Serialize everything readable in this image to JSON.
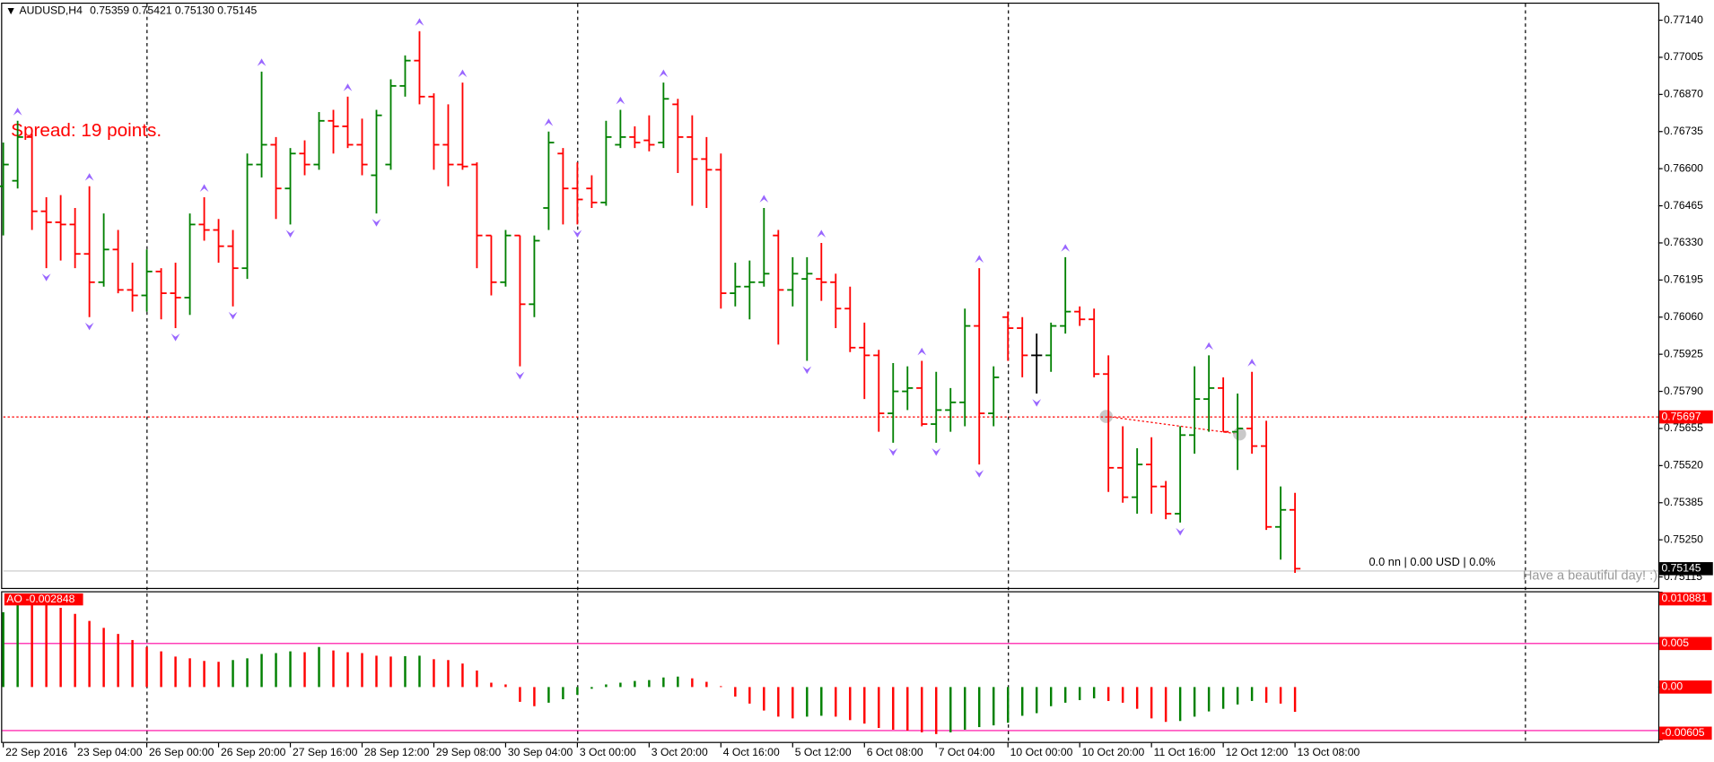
{
  "chart_data": {
    "type": "ohlc",
    "header": {
      "symbol": "AUDUSD,H4",
      "values": [
        "0.75359",
        "0.75421",
        "0.75130",
        "0.75145"
      ]
    },
    "spread_text": "Spread: 19 points.",
    "account_text": "0.0 nn | 0.00 USD | 0.0%",
    "greeting": "Have a beautiful day! :)",
    "categories": [
      "22 Sep 2016",
      null,
      null,
      null,
      null,
      "23 Sep 04:00",
      null,
      null,
      null,
      null,
      "26 Sep 00:00",
      null,
      null,
      null,
      null,
      "26 Sep 20:00",
      null,
      null,
      null,
      null,
      "27 Sep 16:00",
      null,
      null,
      null,
      null,
      "28 Sep 12:00",
      null,
      null,
      null,
      null,
      "29 Sep 08:00",
      null,
      null,
      null,
      null,
      "30 Sep 04:00",
      null,
      null,
      null,
      null,
      "3 Oct 00:00",
      null,
      null,
      null,
      null,
      "3 Oct 20:00",
      null,
      null,
      null,
      null,
      "4 Oct 16:00",
      null,
      null,
      null,
      null,
      "5 Oct 12:00",
      null,
      null,
      null,
      null,
      "6 Oct 08:00",
      null,
      null,
      null,
      null,
      "7 Oct 04:00",
      null,
      null,
      null,
      null,
      "10 Oct 00:00",
      null,
      null,
      null,
      null,
      "10 Oct 20:00",
      null,
      null,
      null,
      null,
      "11 Oct 16:00",
      null,
      null,
      null,
      null,
      "12 Oct 12:00",
      null,
      null,
      null,
      null,
      "13 Oct 08:00"
    ],
    "open": [
      0.76536,
      0.76556,
      0.76715,
      0.76445,
      0.76405,
      0.76397,
      0.7629,
      0.76187,
      0.76306,
      0.76159,
      0.76139,
      0.76226,
      0.76147,
      0.76131,
      0.76397,
      0.76377,
      0.76318,
      0.76238,
      0.76615,
      0.76687,
      0.76528,
      0.76655,
      0.76615,
      0.76774,
      0.76754,
      0.76687,
      0.76576,
      0.76615,
      0.76901,
      0.76993,
      0.76862,
      0.76687,
      0.76615,
      0.76615,
      0.76357,
      0.76187,
      0.76357,
      0.76107,
      0.76457,
      0.76655,
      0.76528,
      0.76528,
      0.76477,
      0.76687,
      0.76715,
      0.76703,
      0.76695,
      0.76834,
      0.76715,
      0.76635,
      0.76596,
      0.76147,
      0.76171,
      0.76187,
      0.76357,
      0.76159,
      0.76199,
      0.76199,
      0.76187,
      0.76091,
      0.75949,
      0.75921,
      0.7571,
      0.7579,
      0.75802,
      0.75671,
      0.75722,
      0.7575,
      0.76028,
      0.7571,
      0.7606,
      0.7602,
      0.75921,
      0.75921,
      0.76028,
      0.7608,
      0.76052,
      0.75853,
      0.75512,
      0.75405,
      0.75524,
      0.75444,
      0.75345,
      0.75631,
      0.75762,
      0.75802,
      0.75643,
      0.75655,
      0.75591,
      0.75297,
      0.75359
    ],
    "high": [
      0.76695,
      0.76774,
      0.76727,
      0.76496,
      0.76504,
      0.76457,
      0.76536,
      0.76437,
      0.76377,
      0.76258,
      0.76306,
      0.76238,
      0.76258,
      0.76437,
      0.76496,
      0.76417,
      0.76377,
      0.76655,
      0.76953,
      0.76715,
      0.76675,
      0.76703,
      0.76806,
      0.76814,
      0.76862,
      0.76782,
      0.76814,
      0.76925,
      0.77012,
      0.771,
      0.76874,
      0.76834,
      0.76913,
      0.76623,
      0.76357,
      0.76377,
      0.76357,
      0.76357,
      0.76735,
      0.76675,
      0.76623,
      0.76576,
      0.76774,
      0.76814,
      0.76754,
      0.76794,
      0.76913,
      0.76854,
      0.76794,
      0.76715,
      0.76655,
      0.76258,
      0.76266,
      0.76457,
      0.76377,
      0.76278,
      0.76278,
      0.7633,
      0.76218,
      0.76171,
      0.7604,
      0.75941,
      0.75893,
      0.75881,
      0.75901,
      0.75861,
      0.75802,
      0.76091,
      0.76238,
      0.75881,
      0.7608,
      0.7606,
      0.76,
      0.7604,
      0.76278,
      0.76099,
      0.76091,
      0.75921,
      0.75663,
      0.75583,
      0.75623,
      0.75464,
      0.75663,
      0.75881,
      0.75921,
      0.75841,
      0.75782,
      0.75861,
      0.75683,
      0.75444,
      0.75421
    ],
    "low": [
      0.76357,
      0.76528,
      0.76377,
      0.76238,
      0.76266,
      0.76238,
      0.7606,
      0.76171,
      0.76147,
      0.7608,
      0.7608,
      0.76052,
      0.7602,
      0.76068,
      0.76338,
      0.76258,
      0.76099,
      0.76199,
      0.76568,
      0.76417,
      0.76397,
      0.76576,
      0.76596,
      0.76655,
      0.76675,
      0.76576,
      0.76437,
      0.76596,
      0.76862,
      0.76834,
      0.76596,
      0.76536,
      0.76596,
      0.76238,
      0.76139,
      0.76171,
      0.75881,
      0.7606,
      0.76377,
      0.76397,
      0.76397,
      0.76457,
      0.76465,
      0.76675,
      0.76675,
      0.76663,
      0.76675,
      0.76584,
      0.76465,
      0.76457,
      0.76091,
      0.76099,
      0.76052,
      0.76171,
      0.7596,
      0.76099,
      0.75901,
      0.76119,
      0.7602,
      0.75933,
      0.75762,
      0.75643,
      0.75603,
      0.75722,
      0.75663,
      0.75603,
      0.75643,
      0.75663,
      0.75524,
      0.75663,
      0.75901,
      0.75841,
      0.75782,
      0.75861,
      0.76,
      0.76028,
      0.75841,
      0.75424,
      0.75385,
      0.75345,
      0.75345,
      0.75325,
      0.75313,
      0.75563,
      0.75643,
      0.75643,
      0.75504,
      0.75563,
      0.75286,
      0.75178,
      0.7513
    ],
    "close": [
      0.76615,
      0.76715,
      0.76445,
      0.76405,
      0.76397,
      0.7629,
      0.76187,
      0.76306,
      0.76159,
      0.76139,
      0.76226,
      0.76147,
      0.76131,
      0.76397,
      0.76377,
      0.76318,
      0.76238,
      0.76615,
      0.76687,
      0.76528,
      0.76655,
      0.76615,
      0.76774,
      0.76754,
      0.76687,
      0.76615,
      0.76794,
      0.76901,
      0.76993,
      0.76862,
      0.76687,
      0.76615,
      0.76608,
      0.76357,
      0.76187,
      0.76357,
      0.76107,
      0.76338,
      0.76695,
      0.76528,
      0.76488,
      0.76477,
      0.76715,
      0.76715,
      0.76695,
      0.76687,
      0.76854,
      0.76715,
      0.76635,
      0.76596,
      0.76147,
      0.76171,
      0.76187,
      0.76218,
      0.76159,
      0.76218,
      0.76218,
      0.76187,
      0.76091,
      0.75949,
      0.75921,
      0.7571,
      0.7579,
      0.75802,
      0.75671,
      0.75722,
      0.7575,
      0.76028,
      0.7571,
      0.75841,
      0.7602,
      0.75921,
      0.75921,
      0.76028,
      0.7608,
      0.76052,
      0.75853,
      0.75512,
      0.75405,
      0.75524,
      0.75444,
      0.75345,
      0.75631,
      0.75762,
      0.75802,
      0.75643,
      0.75655,
      0.75591,
      0.75297,
      0.75359,
      0.75145
    ],
    "up_color": "#008000",
    "down_color": "#ff0000",
    "doji_color": "#000000",
    "ylim": [
      0.75075,
      0.772
    ],
    "yticks": [
      {
        "value": 0.7714,
        "label": "0.77140"
      },
      {
        "value": 0.77005,
        "label": "0.77005"
      },
      {
        "value": 0.7687,
        "label": "0.76870"
      },
      {
        "value": 0.76735,
        "label": "0.76735"
      },
      {
        "value": 0.766,
        "label": "0.76600"
      },
      {
        "value": 0.76465,
        "label": "0.76465"
      },
      {
        "value": 0.7633,
        "label": "0.76330"
      },
      {
        "value": 0.76195,
        "label": "0.76195"
      },
      {
        "value": 0.7606,
        "label": "0.76060"
      },
      {
        "value": 0.75925,
        "label": "0.75925"
      },
      {
        "value": 0.7579,
        "label": "0.75790"
      },
      {
        "value": 0.75655,
        "label": "0.75655"
      },
      {
        "value": 0.7552,
        "label": "0.75520"
      },
      {
        "value": 0.75385,
        "label": "0.75385"
      },
      {
        "value": 0.7525,
        "label": "0.75250"
      },
      {
        "value": 0.75115,
        "label": "0.75115"
      }
    ],
    "bid_line": 0.75697,
    "fractals": {
      "color": "#9966ff",
      "up": [
        1,
        6,
        14,
        18,
        24,
        29,
        32,
        38,
        43,
        46,
        53,
        57,
        64,
        68,
        74,
        84,
        87
      ],
      "down": [
        3,
        6,
        12,
        16,
        20,
        26,
        36,
        40,
        56,
        62,
        65,
        68,
        72,
        82
      ]
    },
    "ao": {
      "name": "AO",
      "values": [
        0.0086,
        0.0101,
        0.0099,
        0.0096,
        0.0091,
        0.0084,
        0.0076,
        0.0068,
        0.0061,
        0.0054,
        0.0046,
        0.0041,
        0.0035,
        0.0033,
        0.003,
        0.0029,
        0.0031,
        0.0033,
        0.0038,
        0.0039,
        0.0041,
        0.004,
        0.0046,
        0.0042,
        0.004,
        0.0039,
        0.0036,
        0.0035,
        0.00355,
        0.0036,
        0.0032,
        0.0031,
        0.0027,
        0.0019,
        0.0005,
        0.0003,
        -0.0017,
        -0.0022,
        -0.0018,
        -0.0014,
        -0.0009,
        -0.0002,
        0.0003,
        0.0005,
        0.0007,
        0.0008,
        0.0011,
        0.0012,
        0.001,
        0.0006,
        0.0001,
        -0.0011,
        -0.0019,
        -0.0027,
        -0.0034,
        -0.0036,
        -0.0034,
        -0.0033,
        -0.0034,
        -0.0038,
        -0.0042,
        -0.0047,
        -0.0049,
        -0.005,
        -0.0052,
        -0.0054,
        -0.0052,
        -0.0049,
        -0.0046,
        -0.0044,
        -0.0041,
        -0.0033,
        -0.003,
        -0.0022,
        -0.0018,
        -0.0015,
        -0.0013,
        -0.0016,
        -0.0018,
        -0.0025,
        -0.0036,
        -0.004,
        -0.0039,
        -0.0034,
        -0.0028,
        -0.0025,
        -0.002,
        -0.0016,
        -0.0018,
        -0.0019,
        -0.002848
      ],
      "ylim": [
        -0.00605,
        0.010881
      ],
      "yticks": [
        0.010881,
        0.005,
        {
          "value": 0,
          "label": "0.00"
        },
        -0.00605
      ],
      "levels": [
        0.005,
        -0.005
      ],
      "level_color": "#ff00a0"
    }
  }
}
